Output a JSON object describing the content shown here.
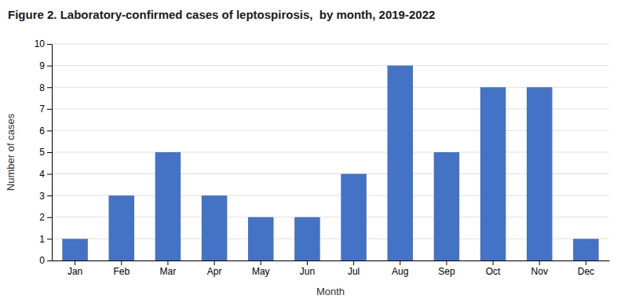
{
  "chart_data": {
    "type": "bar",
    "title": "Figure 2. Laboratory-confirmed cases of leptospirosis,  by month, 2019-2022",
    "xlabel": "Month",
    "ylabel": "Number of cases",
    "categories": [
      "Jan",
      "Feb",
      "Mar",
      "Apr",
      "May",
      "Jun",
      "Jul",
      "Aug",
      "Sep",
      "Oct",
      "Nov",
      "Dec"
    ],
    "values": [
      1,
      3,
      5,
      3,
      2,
      2,
      4,
      9,
      5,
      8,
      8,
      1
    ],
    "color": "#4472C4",
    "ylim": [
      0,
      10
    ],
    "yticks": [
      0,
      1,
      2,
      3,
      4,
      5,
      6,
      7,
      8,
      9,
      10
    ],
    "grid": true
  }
}
